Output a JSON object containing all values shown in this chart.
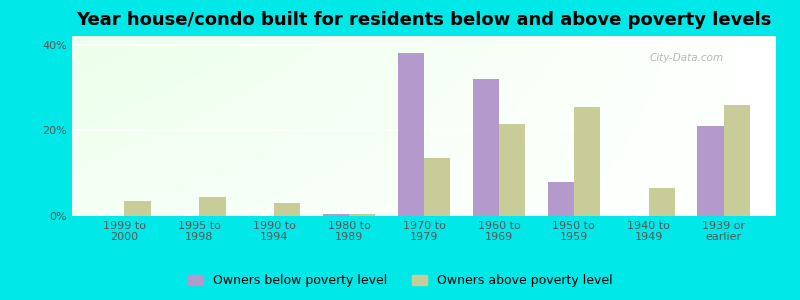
{
  "title": "Year house/condo built for residents below and above poverty levels",
  "categories": [
    "1999 to\n2000",
    "1995 to\n1998",
    "1990 to\n1994",
    "1980 to\n1989",
    "1970 to\n1979",
    "1960 to\n1969",
    "1950 to\n1959",
    "1940 to\n1949",
    "1939 or\nearlier"
  ],
  "below_poverty": [
    0.0,
    0.0,
    0.0,
    0.5,
    38.0,
    32.0,
    8.0,
    0.0,
    21.0
  ],
  "above_poverty": [
    3.5,
    4.5,
    3.0,
    0.5,
    13.5,
    21.5,
    25.5,
    6.5,
    26.0
  ],
  "below_color": "#b399cc",
  "above_color": "#c8cc99",
  "background_outer": "#00e8e8",
  "ylim": [
    0,
    42
  ],
  "yticks": [
    0,
    20,
    40
  ],
  "ytick_labels": [
    "0%",
    "20%",
    "40%"
  ],
  "bar_width": 0.35,
  "legend_below_label": "Owners below poverty level",
  "legend_above_label": "Owners above poverty level",
  "title_fontsize": 13,
  "tick_fontsize": 8,
  "legend_fontsize": 9,
  "watermark": "City-Data.com"
}
